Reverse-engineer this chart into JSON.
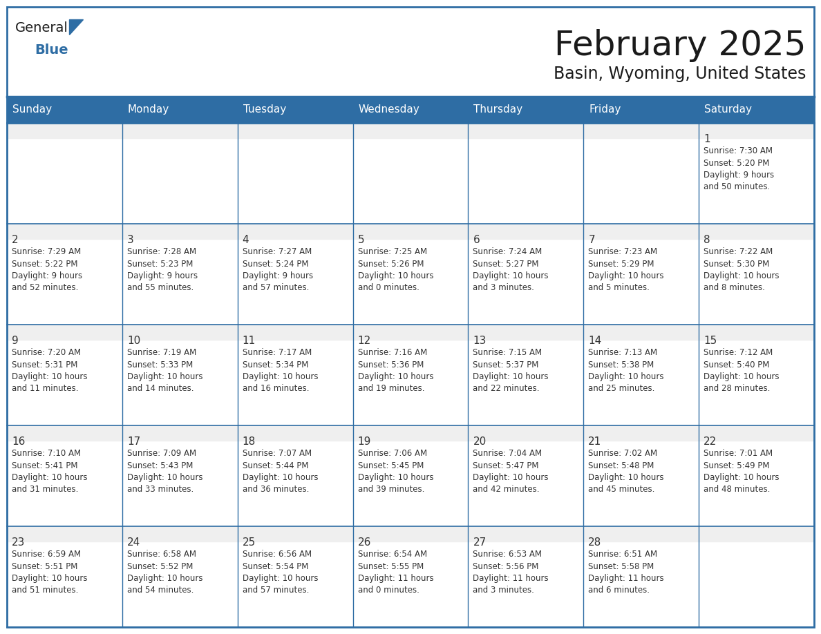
{
  "title": "February 2025",
  "subtitle": "Basin, Wyoming, United States",
  "header_bg": "#2E6DA4",
  "header_text_color": "#FFFFFF",
  "cell_bg": "#FFFFFF",
  "row1_bg": "#EFEFEF",
  "border_color": "#2E6DA4",
  "grid_line_color": "#2E6DA4",
  "text_color": "#333333",
  "day_headers": [
    "Sunday",
    "Monday",
    "Tuesday",
    "Wednesday",
    "Thursday",
    "Friday",
    "Saturday"
  ],
  "days_data": [
    {
      "day": 1,
      "col": 6,
      "row": 0,
      "sunrise": "7:30 AM",
      "sunset": "5:20 PM",
      "daylight": "9 hours and 50 minutes."
    },
    {
      "day": 2,
      "col": 0,
      "row": 1,
      "sunrise": "7:29 AM",
      "sunset": "5:22 PM",
      "daylight": "9 hours and 52 minutes."
    },
    {
      "day": 3,
      "col": 1,
      "row": 1,
      "sunrise": "7:28 AM",
      "sunset": "5:23 PM",
      "daylight": "9 hours and 55 minutes."
    },
    {
      "day": 4,
      "col": 2,
      "row": 1,
      "sunrise": "7:27 AM",
      "sunset": "5:24 PM",
      "daylight": "9 hours and 57 minutes."
    },
    {
      "day": 5,
      "col": 3,
      "row": 1,
      "sunrise": "7:25 AM",
      "sunset": "5:26 PM",
      "daylight": "10 hours and 0 minutes."
    },
    {
      "day": 6,
      "col": 4,
      "row": 1,
      "sunrise": "7:24 AM",
      "sunset": "5:27 PM",
      "daylight": "10 hours and 3 minutes."
    },
    {
      "day": 7,
      "col": 5,
      "row": 1,
      "sunrise": "7:23 AM",
      "sunset": "5:29 PM",
      "daylight": "10 hours and 5 minutes."
    },
    {
      "day": 8,
      "col": 6,
      "row": 1,
      "sunrise": "7:22 AM",
      "sunset": "5:30 PM",
      "daylight": "10 hours and 8 minutes."
    },
    {
      "day": 9,
      "col": 0,
      "row": 2,
      "sunrise": "7:20 AM",
      "sunset": "5:31 PM",
      "daylight": "10 hours and 11 minutes."
    },
    {
      "day": 10,
      "col": 1,
      "row": 2,
      "sunrise": "7:19 AM",
      "sunset": "5:33 PM",
      "daylight": "10 hours and 14 minutes."
    },
    {
      "day": 11,
      "col": 2,
      "row": 2,
      "sunrise": "7:17 AM",
      "sunset": "5:34 PM",
      "daylight": "10 hours and 16 minutes."
    },
    {
      "day": 12,
      "col": 3,
      "row": 2,
      "sunrise": "7:16 AM",
      "sunset": "5:36 PM",
      "daylight": "10 hours and 19 minutes."
    },
    {
      "day": 13,
      "col": 4,
      "row": 2,
      "sunrise": "7:15 AM",
      "sunset": "5:37 PM",
      "daylight": "10 hours and 22 minutes."
    },
    {
      "day": 14,
      "col": 5,
      "row": 2,
      "sunrise": "7:13 AM",
      "sunset": "5:38 PM",
      "daylight": "10 hours and 25 minutes."
    },
    {
      "day": 15,
      "col": 6,
      "row": 2,
      "sunrise": "7:12 AM",
      "sunset": "5:40 PM",
      "daylight": "10 hours and 28 minutes."
    },
    {
      "day": 16,
      "col": 0,
      "row": 3,
      "sunrise": "7:10 AM",
      "sunset": "5:41 PM",
      "daylight": "10 hours and 31 minutes."
    },
    {
      "day": 17,
      "col": 1,
      "row": 3,
      "sunrise": "7:09 AM",
      "sunset": "5:43 PM",
      "daylight": "10 hours and 33 minutes."
    },
    {
      "day": 18,
      "col": 2,
      "row": 3,
      "sunrise": "7:07 AM",
      "sunset": "5:44 PM",
      "daylight": "10 hours and 36 minutes."
    },
    {
      "day": 19,
      "col": 3,
      "row": 3,
      "sunrise": "7:06 AM",
      "sunset": "5:45 PM",
      "daylight": "10 hours and 39 minutes."
    },
    {
      "day": 20,
      "col": 4,
      "row": 3,
      "sunrise": "7:04 AM",
      "sunset": "5:47 PM",
      "daylight": "10 hours and 42 minutes."
    },
    {
      "day": 21,
      "col": 5,
      "row": 3,
      "sunrise": "7:02 AM",
      "sunset": "5:48 PM",
      "daylight": "10 hours and 45 minutes."
    },
    {
      "day": 22,
      "col": 6,
      "row": 3,
      "sunrise": "7:01 AM",
      "sunset": "5:49 PM",
      "daylight": "10 hours and 48 minutes."
    },
    {
      "day": 23,
      "col": 0,
      "row": 4,
      "sunrise": "6:59 AM",
      "sunset": "5:51 PM",
      "daylight": "10 hours and 51 minutes."
    },
    {
      "day": 24,
      "col": 1,
      "row": 4,
      "sunrise": "6:58 AM",
      "sunset": "5:52 PM",
      "daylight": "10 hours and 54 minutes."
    },
    {
      "day": 25,
      "col": 2,
      "row": 4,
      "sunrise": "6:56 AM",
      "sunset": "5:54 PM",
      "daylight": "10 hours and 57 minutes."
    },
    {
      "day": 26,
      "col": 3,
      "row": 4,
      "sunrise": "6:54 AM",
      "sunset": "5:55 PM",
      "daylight": "11 hours and 0 minutes."
    },
    {
      "day": 27,
      "col": 4,
      "row": 4,
      "sunrise": "6:53 AM",
      "sunset": "5:56 PM",
      "daylight": "11 hours and 3 minutes."
    },
    {
      "day": 28,
      "col": 5,
      "row": 4,
      "sunrise": "6:51 AM",
      "sunset": "5:58 PM",
      "daylight": "11 hours and 6 minutes."
    }
  ],
  "num_rows": 5,
  "num_cols": 7,
  "fig_width": 11.88,
  "fig_height": 9.18,
  "dpi": 100
}
